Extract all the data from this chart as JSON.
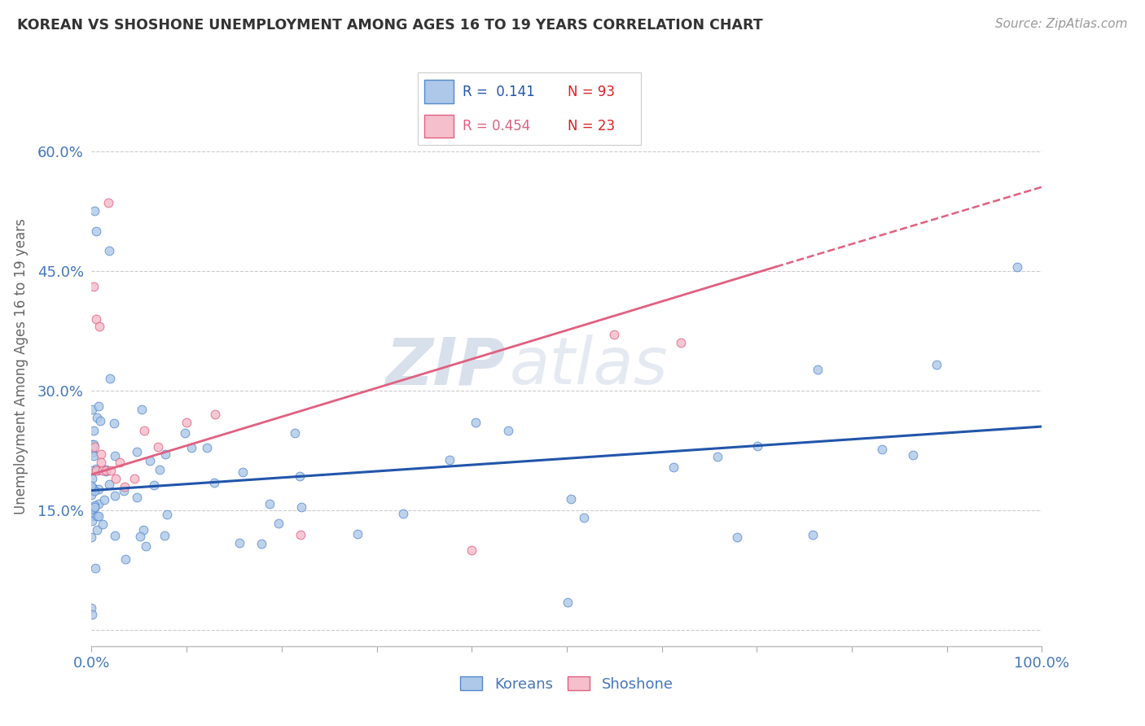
{
  "title": "KOREAN VS SHOSHONE UNEMPLOYMENT AMONG AGES 16 TO 19 YEARS CORRELATION CHART",
  "source": "Source: ZipAtlas.com",
  "ylabel": "Unemployment Among Ages 16 to 19 years",
  "xlim": [
    0,
    1.0
  ],
  "ylim": [
    -0.02,
    0.68
  ],
  "yticks": [
    0.0,
    0.15,
    0.3,
    0.45,
    0.6
  ],
  "ytick_labels": [
    "",
    "15.0%",
    "30.0%",
    "45.0%",
    "60.0%"
  ],
  "korean_color": "#adc8e8",
  "korean_edge_color": "#5588cc",
  "shoshone_color": "#f5bfcc",
  "shoshone_edge_color": "#e06080",
  "korean_line_color": "#2255aa",
  "shoshone_line_color": "#e06080",
  "title_color": "#333333",
  "axis_tick_color": "#4477bb",
  "grid_color": "#cccccc",
  "watermark_zip": "ZIP",
  "watermark_atlas": "atlas",
  "korean_trend": [
    0.0,
    1.0,
    0.175,
    0.255
  ],
  "shoshone_trend_solid": [
    0.0,
    0.72,
    0.195,
    0.455
  ],
  "shoshone_trend_dashed": [
    0.72,
    1.0,
    0.455,
    0.555
  ]
}
